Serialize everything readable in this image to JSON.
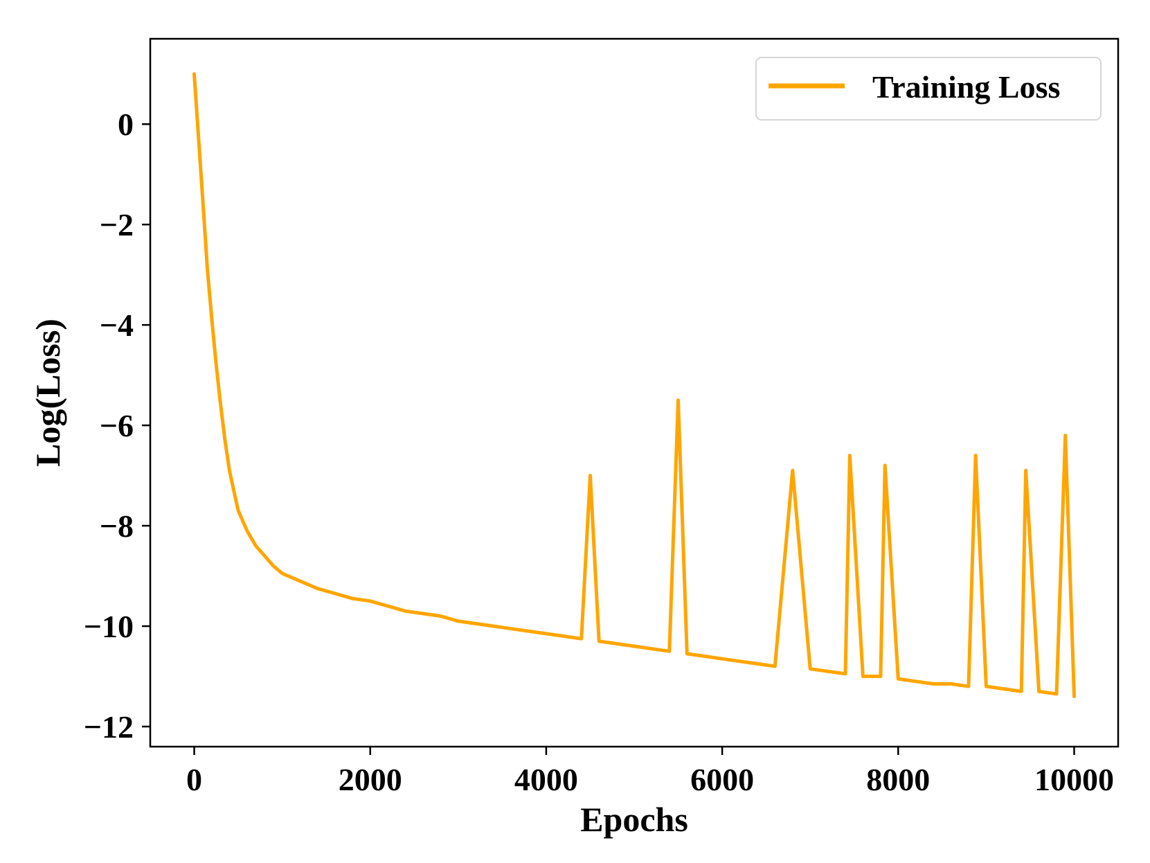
{
  "chart_data": {
    "type": "line",
    "title": "",
    "xlabel": "Epochs",
    "ylabel": "Log(Loss)",
    "xlim": [
      -500,
      10500
    ],
    "ylim": [
      -12.4,
      1.7
    ],
    "x_ticks": [
      0,
      2000,
      4000,
      6000,
      8000,
      10000
    ],
    "x_tick_labels": [
      "0",
      "2000",
      "4000",
      "6000",
      "8000",
      "10000"
    ],
    "y_ticks": [
      0,
      -2,
      -4,
      -6,
      -8,
      -10,
      -12
    ],
    "y_tick_labels": [
      "0",
      "−2",
      "−4",
      "−6",
      "−8",
      "−10",
      "−12"
    ],
    "grid": false,
    "legend_position": "top-right",
    "series": [
      {
        "name": "Training Loss",
        "color": "#FFA500",
        "x": [
          0,
          50,
          100,
          150,
          200,
          250,
          300,
          350,
          400,
          450,
          500,
          600,
          700,
          800,
          900,
          1000,
          1200,
          1400,
          1600,
          1800,
          2000,
          2200,
          2400,
          2600,
          2800,
          3000,
          3200,
          3400,
          3600,
          3800,
          4000,
          4200,
          4400,
          4500,
          4600,
          4800,
          5000,
          5200,
          5400,
          5500,
          5600,
          5800,
          6000,
          6200,
          6400,
          6600,
          6800,
          7000,
          7200,
          7400,
          7450,
          7600,
          7800,
          7850,
          8000,
          8200,
          8400,
          8600,
          8800,
          8880,
          9000,
          9200,
          9400,
          9450,
          9600,
          9800,
          9900,
          10000
        ],
        "y": [
          1.0,
          -0.3,
          -1.6,
          -2.9,
          -3.9,
          -4.8,
          -5.6,
          -6.3,
          -6.9,
          -7.3,
          -7.7,
          -8.1,
          -8.4,
          -8.6,
          -8.8,
          -8.95,
          -9.1,
          -9.25,
          -9.35,
          -9.45,
          -9.5,
          -9.6,
          -9.7,
          -9.75,
          -9.8,
          -9.9,
          -9.95,
          -10.0,
          -10.05,
          -10.1,
          -10.15,
          -10.2,
          -10.25,
          -7.0,
          -10.3,
          -10.35,
          -10.4,
          -10.45,
          -10.5,
          -5.5,
          -10.55,
          -10.6,
          -10.65,
          -10.7,
          -10.75,
          -10.8,
          -6.9,
          -10.85,
          -10.9,
          -10.95,
          -6.6,
          -11.0,
          -11.0,
          -6.8,
          -11.05,
          -11.1,
          -11.15,
          -11.15,
          -11.2,
          -6.6,
          -11.2,
          -11.25,
          -11.3,
          -6.9,
          -11.3,
          -11.35,
          -6.2,
          -11.4
        ]
      }
    ]
  }
}
